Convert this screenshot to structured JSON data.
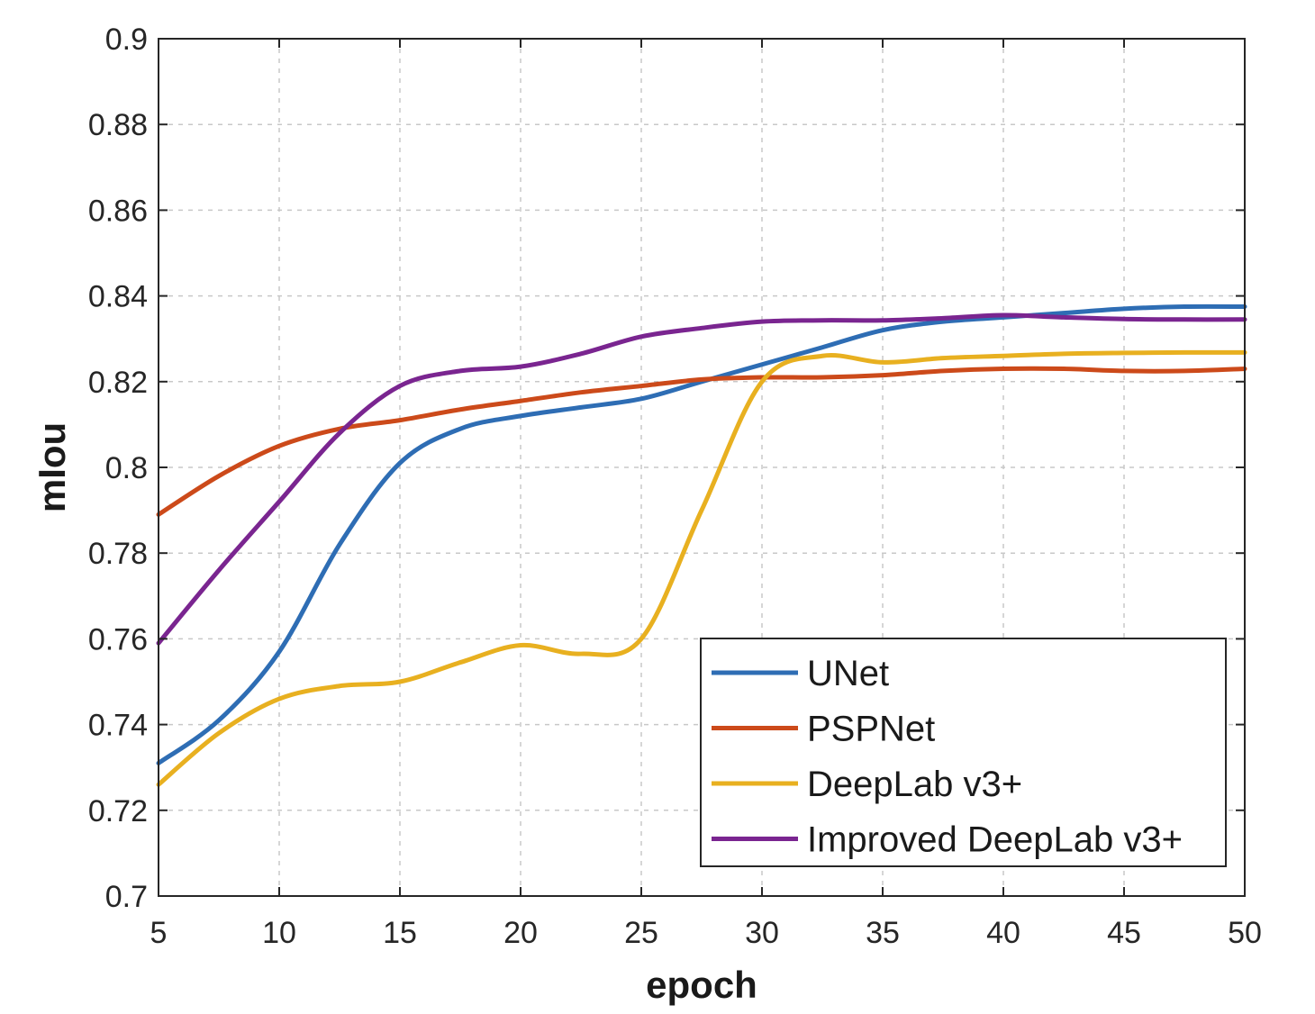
{
  "chart_data": {
    "type": "line",
    "title": "",
    "xlabel": "epoch",
    "ylabel": "mIou",
    "xlim": [
      5,
      50
    ],
    "ylim": [
      0.7,
      0.9
    ],
    "xticks": [
      5,
      10,
      15,
      20,
      25,
      30,
      35,
      40,
      45,
      50
    ],
    "xtick_labels": [
      "5",
      "10",
      "15",
      "20",
      "25",
      "30",
      "35",
      "40",
      "45",
      "50"
    ],
    "yticks": [
      0.7,
      0.72,
      0.74,
      0.76,
      0.78,
      0.8,
      0.82,
      0.84,
      0.86,
      0.88,
      0.9
    ],
    "ytick_labels": [
      "0.7",
      "0.72",
      "0.74",
      "0.76",
      "0.78",
      "0.8",
      "0.82",
      "0.84",
      "0.86",
      "0.88",
      "0.9"
    ],
    "grid": true,
    "legend_position": "bottom-right",
    "x": [
      5,
      7.5,
      10,
      12.5,
      15,
      17.5,
      20,
      22.5,
      25,
      27.5,
      30,
      32.5,
      35,
      37.5,
      40,
      42.5,
      45,
      47.5,
      50
    ],
    "series": [
      {
        "name": "UNet",
        "color": "#2e6db4",
        "values": [
          0.731,
          0.741,
          0.757,
          0.782,
          0.801,
          0.809,
          0.812,
          0.814,
          0.816,
          0.82,
          0.824,
          0.828,
          0.832,
          0.834,
          0.835,
          0.836,
          0.837,
          0.8375,
          0.8375
        ]
      },
      {
        "name": "PSPNet",
        "color": "#cc4a1a",
        "values": [
          0.789,
          0.798,
          0.805,
          0.809,
          0.811,
          0.8135,
          0.8155,
          0.8175,
          0.819,
          0.8205,
          0.821,
          0.821,
          0.8215,
          0.8225,
          0.823,
          0.823,
          0.8225,
          0.8225,
          0.823
        ]
      },
      {
        "name": "DeepLab v3+",
        "color": "#e8b020",
        "values": [
          0.726,
          0.738,
          0.746,
          0.749,
          0.75,
          0.7545,
          0.7585,
          0.7565,
          0.76,
          0.79,
          0.82,
          0.826,
          0.8245,
          0.8255,
          0.826,
          0.8265,
          0.8267,
          0.8268,
          0.8268
        ]
      },
      {
        "name": "Improved DeepLab v3+",
        "color": "#7a2590",
        "values": [
          0.759,
          0.776,
          0.792,
          0.808,
          0.819,
          0.8225,
          0.8235,
          0.8265,
          0.8305,
          0.8325,
          0.834,
          0.8343,
          0.8343,
          0.8348,
          0.8355,
          0.835,
          0.8346,
          0.8345,
          0.8345
        ]
      }
    ]
  }
}
